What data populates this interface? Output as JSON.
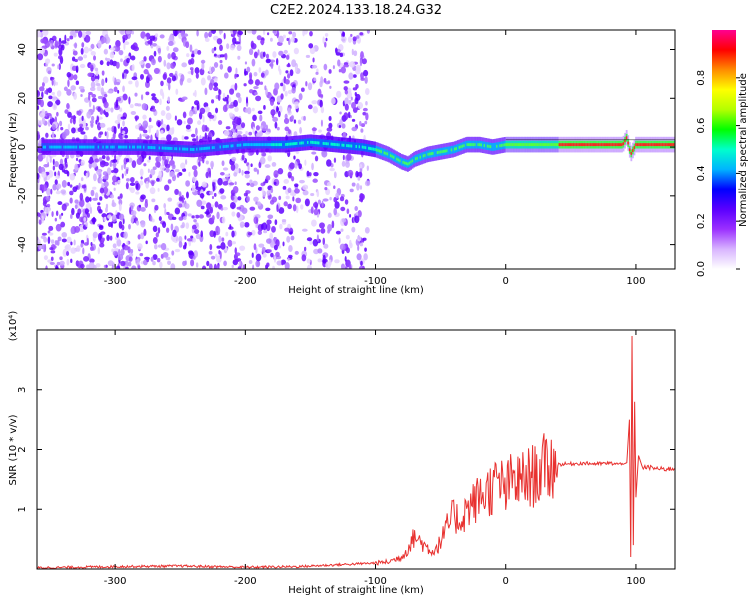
{
  "title": "C2E2.2024.133.18.24.G32",
  "chart_data": [
    {
      "type": "heatmap",
      "xlabel": "Height of straight line (km)",
      "ylabel": "Frequency (Hz)",
      "xlim": [
        -360,
        130
      ],
      "ylim": [
        -50,
        48
      ],
      "xticks": [
        -300,
        -200,
        -100,
        0,
        100
      ],
      "yticks": [
        -40,
        -20,
        0,
        20,
        40
      ],
      "colorbar": {
        "label": "Normalized spectral amplitude",
        "range": [
          0.0,
          1.0
        ],
        "ticks": [
          0.0,
          0.2,
          0.4,
          0.6,
          0.8
        ],
        "colormap": [
          "#ffffff",
          "#d8b4ff",
          "#9b30ff",
          "#5a00ff",
          "#0000ff",
          "#00b4ff",
          "#00ffcc",
          "#00ff00",
          "#b4ff00",
          "#ffff00",
          "#ff8c00",
          "#ff0000",
          "#ff0090"
        ]
      },
      "ridge": {
        "x": [
          -350,
          -320,
          -280,
          -240,
          -200,
          -170,
          -150,
          -130,
          -110,
          -100,
          -90,
          -80,
          -75,
          -70,
          -60,
          -50,
          -40,
          -30,
          -20,
          -10,
          0,
          20,
          50,
          80,
          90,
          93,
          96,
          100,
          110,
          130
        ],
        "y": [
          0,
          0,
          0,
          -1,
          1,
          1,
          2,
          1,
          0,
          -1,
          -3,
          -6,
          -7,
          -5,
          -3,
          -2,
          -1,
          1,
          1,
          0,
          1,
          1,
          1,
          1,
          1,
          4,
          -3,
          1,
          1,
          1
        ]
      }
    },
    {
      "type": "line",
      "xlabel": "Height of straight line (km)",
      "ylabel": "SNR (10 * v/v)",
      "y_multiplier": "(x10⁴)",
      "xlim": [
        -360,
        130
      ],
      "ylim": [
        0,
        4.0
      ],
      "xticks": [
        -300,
        -200,
        -100,
        0,
        100
      ],
      "yticks": [
        1,
        2,
        3
      ],
      "color": "#e8312f",
      "series": [
        {
          "x": [
            -360,
            -300,
            -250,
            -200,
            -160,
            -120,
            -100,
            -90,
            -80,
            -75,
            -70,
            -65,
            -60,
            -55,
            -50,
            -45,
            -40,
            -35,
            -30,
            -25,
            -20,
            -15,
            -10,
            -5,
            0,
            5,
            10,
            15,
            20,
            25,
            30,
            35,
            40,
            50,
            60,
            70,
            80,
            85,
            90,
            93,
            95,
            96,
            97,
            98,
            99,
            100,
            102,
            105,
            110,
            120,
            130
          ],
          "y": [
            0.02,
            0.04,
            0.05,
            0.03,
            0.04,
            0.08,
            0.1,
            0.12,
            0.2,
            0.35,
            0.55,
            0.45,
            0.35,
            0.3,
            0.45,
            0.7,
            0.9,
            0.8,
            1.0,
            1.1,
            1.2,
            1.3,
            1.35,
            1.45,
            1.3,
            1.5,
            1.45,
            1.5,
            1.55,
            1.6,
            1.7,
            1.72,
            1.75,
            1.76,
            1.77,
            1.76,
            1.77,
            1.76,
            1.75,
            1.78,
            2.5,
            0.2,
            3.9,
            0.4,
            2.8,
            1.2,
            1.9,
            1.7,
            1.7,
            1.67,
            1.68
          ]
        }
      ]
    }
  ]
}
